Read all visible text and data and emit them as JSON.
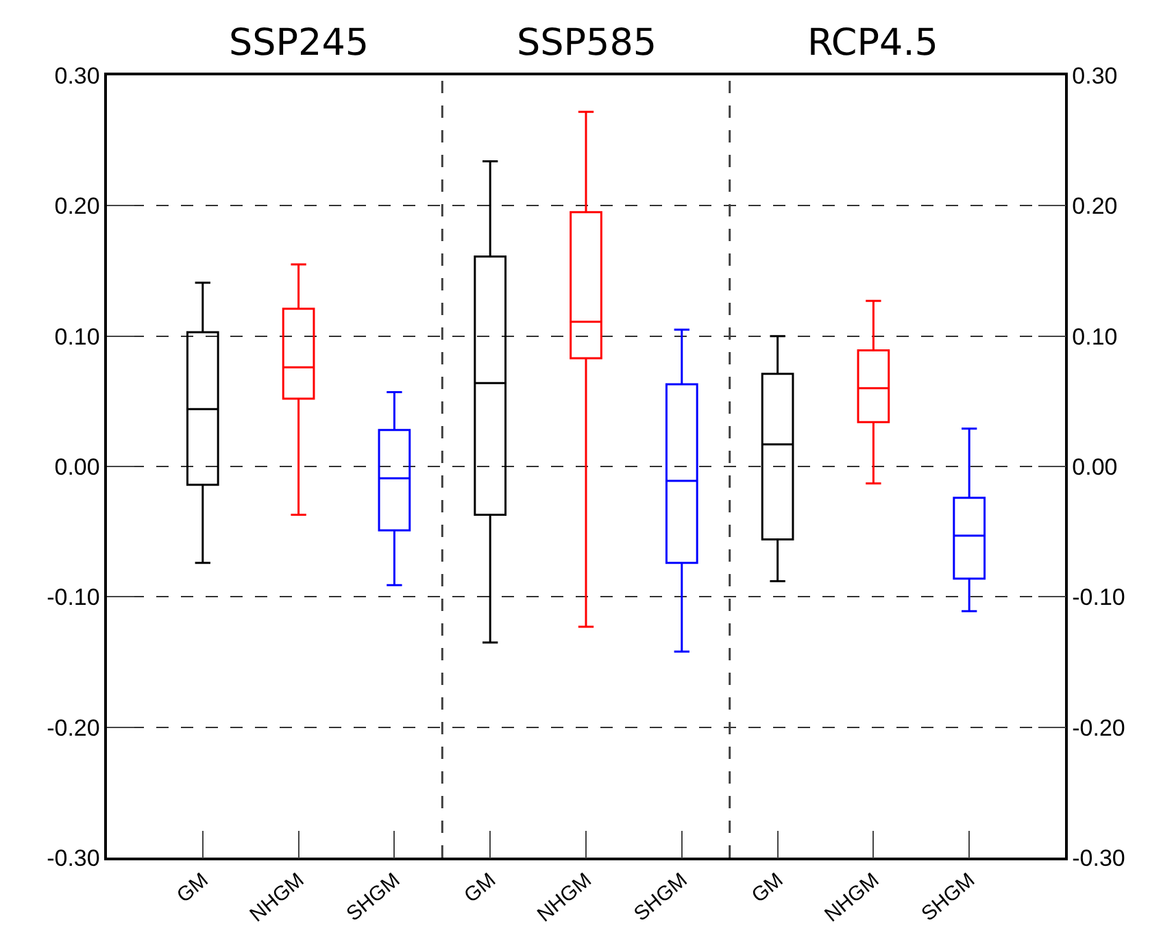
{
  "chart_data": {
    "type": "box",
    "categories": [
      "GM",
      "NHGM",
      "SHGM",
      "GM",
      "NHGM",
      "SHGM",
      "GM",
      "NHGM",
      "SHGM"
    ],
    "colors": [
      "#000000",
      "#ff0000",
      "#0000ff",
      "#000000",
      "#ff0000",
      "#0000ff",
      "#000000",
      "#ff0000",
      "#0000ff"
    ],
    "boxes": [
      {
        "low": -0.074,
        "q1": -0.014,
        "median": 0.044,
        "q3": 0.103,
        "high": 0.141
      },
      {
        "low": -0.037,
        "q1": 0.052,
        "median": 0.076,
        "q3": 0.121,
        "high": 0.155
      },
      {
        "low": -0.091,
        "q1": -0.049,
        "median": -0.009,
        "q3": 0.028,
        "high": 0.057
      },
      {
        "low": -0.135,
        "q1": -0.037,
        "median": 0.064,
        "q3": 0.161,
        "high": 0.234
      },
      {
        "low": -0.123,
        "q1": 0.083,
        "median": 0.111,
        "q3": 0.195,
        "high": 0.272
      },
      {
        "low": -0.142,
        "q1": -0.074,
        "median": -0.011,
        "q3": 0.063,
        "high": 0.105
      },
      {
        "low": -0.088,
        "q1": -0.056,
        "median": 0.017,
        "q3": 0.071,
        "high": 0.1
      },
      {
        "low": -0.013,
        "q1": 0.034,
        "median": 0.06,
        "q3": 0.089,
        "high": 0.127
      },
      {
        "low": -0.111,
        "q1": -0.086,
        "median": -0.053,
        "q3": -0.024,
        "high": 0.029
      }
    ],
    "annotations": [
      "SSP245",
      "SSP585",
      "RCP4.5"
    ],
    "ylim": [
      -0.3,
      0.3
    ],
    "yticks": [
      {
        "value": -0.3,
        "label": "-0.30"
      },
      {
        "value": -0.2,
        "label": "-0.20"
      },
      {
        "value": -0.1,
        "label": "-0.10"
      },
      {
        "value": 0,
        "label": "0.00"
      },
      {
        "value": 0.1,
        "label": "0.10"
      },
      {
        "value": 0.2,
        "label": "0.20"
      },
      {
        "value": 0.3,
        "label": "0.30"
      }
    ],
    "y2lim": [
      -0.3,
      0.3
    ],
    "y2ticks": [
      {
        "value": -0.3,
        "label": "-0.30"
      },
      {
        "value": -0.2,
        "label": "-0.20"
      },
      {
        "value": -0.1,
        "label": "-0.10"
      },
      {
        "value": 0,
        "label": "0.00"
      },
      {
        "value": 0.1,
        "label": "0.10"
      },
      {
        "value": 0.2,
        "label": "0.20"
      },
      {
        "value": 0.3,
        "label": "0.30"
      }
    ],
    "grid": "y",
    "legend": false
  }
}
